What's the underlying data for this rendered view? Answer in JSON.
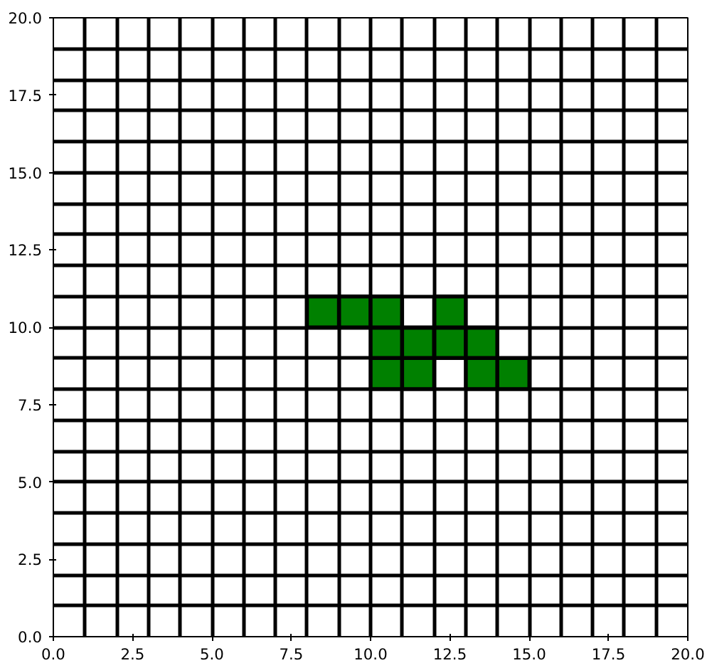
{
  "chart_data": {
    "type": "scatter",
    "marker": "square",
    "grid": true,
    "xlim": [
      0,
      20
    ],
    "ylim": [
      0,
      20
    ],
    "xticks": [
      {
        "value": 0,
        "label": "0.0"
      },
      {
        "value": 2.5,
        "label": "2.5"
      },
      {
        "value": 5,
        "label": "5.0"
      },
      {
        "value": 7.5,
        "label": "7.5"
      },
      {
        "value": 10,
        "label": "10.0"
      },
      {
        "value": 12.5,
        "label": "12.5"
      },
      {
        "value": 15,
        "label": "15.0"
      },
      {
        "value": 17.5,
        "label": "17.5"
      },
      {
        "value": 20,
        "label": "20.0"
      }
    ],
    "yticks": [
      {
        "value": 0,
        "label": "0.0"
      },
      {
        "value": 2.5,
        "label": "2.5"
      },
      {
        "value": 5,
        "label": "5.0"
      },
      {
        "value": 7.5,
        "label": "7.5"
      },
      {
        "value": 10,
        "label": "10.0"
      },
      {
        "value": 12.5,
        "label": "12.5"
      },
      {
        "value": 15,
        "label": "15.0"
      },
      {
        "value": 17.5,
        "label": "17.5"
      },
      {
        "value": 20,
        "label": "20.0"
      }
    ],
    "series": [
      {
        "color": "#008000",
        "x": [
          10.5,
          11.5,
          13.5,
          14.5,
          10.5,
          11.5,
          12.5,
          13.5,
          8.5,
          9.5,
          10.5,
          12.5
        ],
        "values": [
          8.5,
          8.5,
          8.5,
          8.5,
          9.5,
          9.5,
          9.5,
          9.5,
          10.5,
          10.5,
          10.5,
          10.5
        ]
      }
    ]
  }
}
